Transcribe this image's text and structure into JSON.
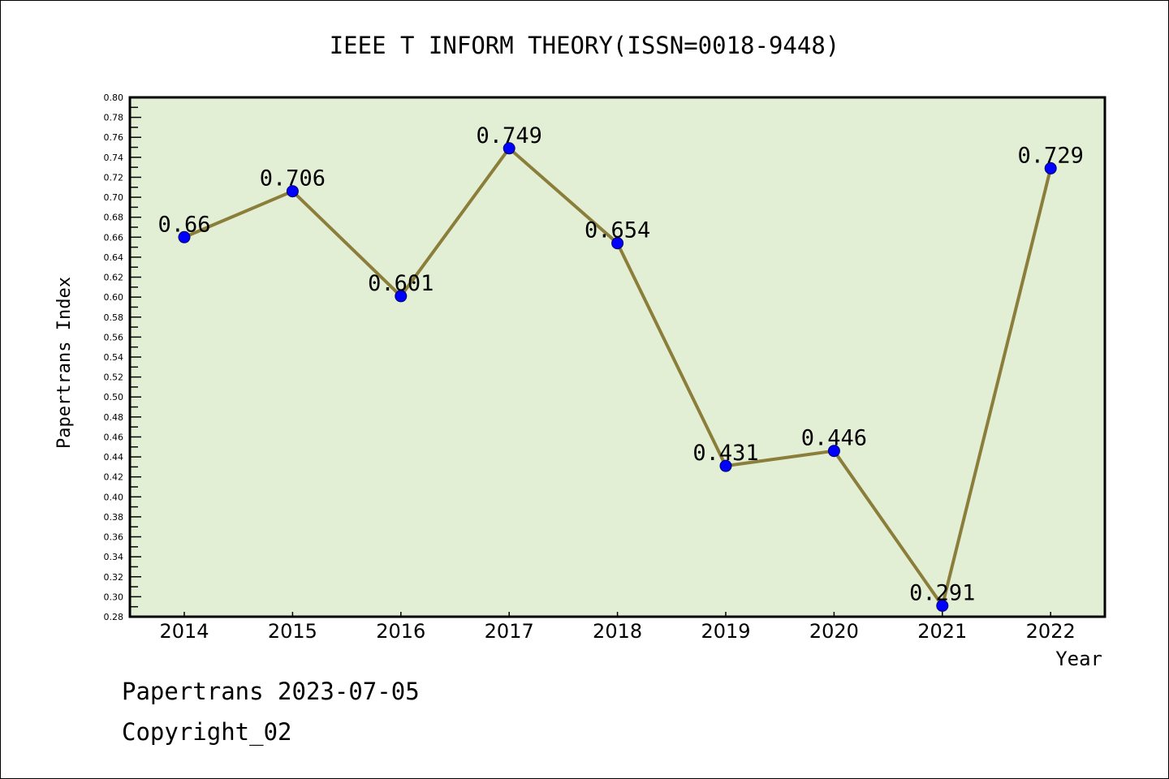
{
  "chart_data": {
    "type": "line",
    "title": "IEEE T INFORM THEORY(ISSN=0018-9448)",
    "xlabel": "Year",
    "ylabel": "Papertrans Index",
    "categories": [
      "2014",
      "2015",
      "2016",
      "2017",
      "2018",
      "2019",
      "2020",
      "2021",
      "2022"
    ],
    "series": [
      {
        "name": "Papertrans Index",
        "values": [
          0.66,
          0.706,
          0.601,
          0.749,
          0.654,
          0.431,
          0.446,
          0.291,
          0.729
        ]
      }
    ],
    "data_labels": [
      "0.66",
      "0.706",
      "0.601",
      "0.749",
      "0.654",
      "0.431",
      "0.446",
      "0.291",
      "0.729"
    ],
    "ylim": [
      0.28,
      0.8
    ],
    "ytick_step": 0.02,
    "grid": false,
    "colors": {
      "line": "#8b7d3a",
      "marker": "#0000ff",
      "plot_bg": "#e2efd5"
    }
  },
  "footer": {
    "line1": "Papertrans 2023-07-05",
    "line2": "Copyright_02"
  }
}
